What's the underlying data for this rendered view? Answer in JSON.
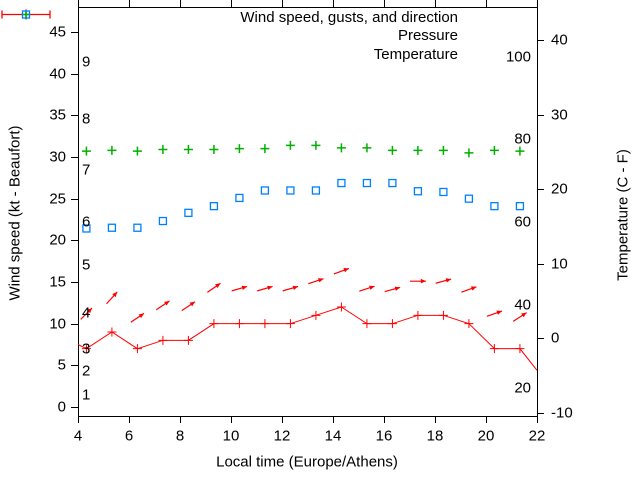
{
  "chart_data": {
    "type": "line",
    "xlabel": "Local time (Europe/Athens)",
    "ylabel_left": "Wind speed (kt - Beaufort)",
    "ylabel_right": "Temperature (C - F)",
    "background_color": "#ffffff",
    "axis_color": "#000000",
    "legend": [
      {
        "label": "Wind speed, gusts, and direction",
        "marker": "errorbar-line-plus",
        "color": "#ff0000"
      },
      {
        "label": "Pressure",
        "marker": "plus",
        "color": "#00b000"
      },
      {
        "label": "Temperature",
        "marker": "open-square",
        "color": "#0080ff"
      }
    ],
    "x_axis": {
      "min": 4,
      "max": 22,
      "ticks": [
        4,
        6,
        8,
        10,
        12,
        14,
        16,
        18,
        20,
        22
      ]
    },
    "y_left_axis": {
      "unit": "kt",
      "min": 0,
      "max": 45,
      "ticks": [
        0,
        5,
        10,
        15,
        20,
        25,
        30,
        35,
        40,
        45
      ],
      "beaufort_labels": [
        [
          1,
          1.5
        ],
        [
          2,
          4.3
        ],
        [
          3,
          7
        ],
        [
          4,
          11.3
        ],
        [
          5,
          17
        ],
        [
          6,
          22.2
        ],
        [
          7,
          28.4
        ],
        [
          8,
          34.6
        ],
        [
          9,
          41.4
        ]
      ]
    },
    "y_right_axis": {
      "unit": "C",
      "min": -10,
      "max": 40,
      "ticks": [
        -10,
        0,
        10,
        20,
        30,
        40
      ],
      "fahrenheit_labels": [
        20,
        40,
        60,
        80,
        100
      ]
    },
    "hours": [
      4.33,
      5.33,
      6.33,
      7.33,
      8.33,
      9.33,
      10.33,
      11.33,
      12.33,
      13.33,
      14.33,
      15.33,
      16.33,
      17.33,
      18.33,
      19.33,
      20.33,
      21.33
    ],
    "wind_speed_kt": [
      7,
      9,
      7,
      8,
      8,
      10,
      10,
      10,
      10,
      11,
      12,
      10,
      10,
      11,
      11,
      10,
      7,
      7
    ],
    "wind_edge_points": [
      [
        4.0,
        7.5
      ],
      [
        22.0,
        4.4
      ]
    ],
    "gust_kt": [
      11.2,
      13.1,
      10.7,
      12.2,
      12.1,
      14.3,
      14.2,
      14.2,
      14.2,
      15.1,
      16.3,
      14.2,
      14.1,
      15.1,
      15.1,
      14.1,
      11.2,
      10.8
    ],
    "gust_direction_deg_up_from_east": [
      45,
      48,
      34,
      34,
      34,
      35,
      16,
      16,
      16,
      18,
      20,
      18,
      15,
      0,
      15,
      20,
      19,
      33
    ],
    "pressure_plotted_kt_equiv": [
      30.7,
      30.8,
      30.7,
      30.9,
      30.9,
      30.9,
      31.0,
      31.0,
      31.4,
      31.4,
      31.1,
      31.1,
      30.8,
      30.8,
      30.8,
      30.5,
      30.8,
      30.7
    ],
    "temperature_c": [
      14.7,
      14.8,
      14.8,
      15.7,
      16.8,
      17.7,
      18.8,
      19.8,
      19.8,
      19.8,
      20.8,
      20.8,
      20.8,
      19.7,
      19.6,
      18.7,
      17.7,
      17.7
    ]
  }
}
